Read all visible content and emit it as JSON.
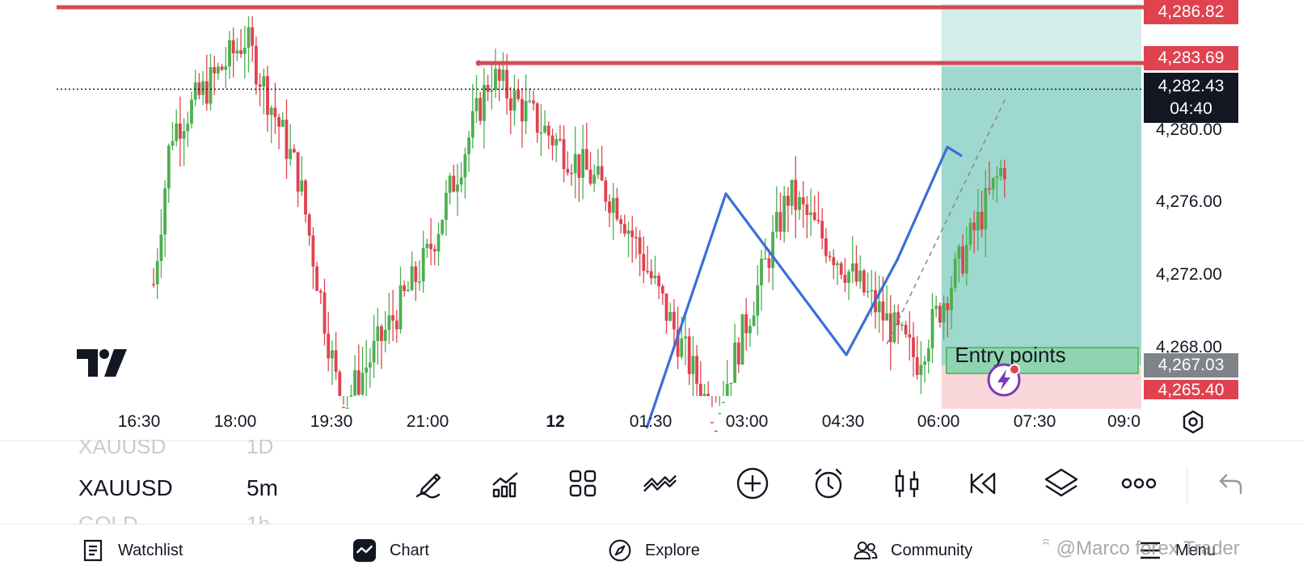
{
  "symbol": {
    "ghost_above": "XAUUSD",
    "ghost_above_tf": "1D",
    "name": "XAUUSD",
    "timeframe": "5m",
    "ghost_below": "GOLD",
    "ghost_below_tf": "1h"
  },
  "price_tags": {
    "top_line": "4,286.82",
    "second_line": "4,283.69",
    "current": "4,282.43",
    "countdown": "04:40",
    "entry": "4,267.03",
    "stop": "4,265.40"
  },
  "price_axis": [
    "4,280.00",
    "4,276.00",
    "4,272.00",
    "4,268.00"
  ],
  "time_axis": [
    {
      "label": "16:30",
      "bold": false
    },
    {
      "label": "18:00",
      "bold": false
    },
    {
      "label": "19:30",
      "bold": false
    },
    {
      "label": "21:00",
      "bold": false
    },
    {
      "label": "12",
      "bold": true
    },
    {
      "label": "01:30",
      "bold": false
    },
    {
      "label": "03:00",
      "bold": false
    },
    {
      "label": "04:30",
      "bold": false
    },
    {
      "label": "06:00",
      "bold": false
    },
    {
      "label": "07:30",
      "bold": false
    },
    {
      "label": "09:0",
      "bold": false
    }
  ],
  "annotations": {
    "entry_box": "Entry points"
  },
  "toolbar": [
    "pencil-icon",
    "indicators-icon",
    "templates-icon",
    "compare-icon",
    "add-icon",
    "alert-clock-icon",
    "candles-icon",
    "replay-icon",
    "layers-icon",
    "more-icon",
    "undo-icon"
  ],
  "nav": {
    "watchlist": "Watchlist",
    "chart": "Chart",
    "explore": "Explore",
    "community": "Community",
    "menu": "Menu"
  },
  "watermark": "@Marco forex Trader",
  "colors": {
    "bull": "#4caf50",
    "bear": "#e0424f",
    "resistance": "#d64a55",
    "profit_zone": "#9fd8cf",
    "profit_zone_light": "#d3ede8",
    "stop_zone": "#f9d6da",
    "entry_box": "#8fd4b0",
    "trend": "#3a6fd8",
    "price_tag_red": "#e0424f",
    "price_tag_black": "#131722",
    "price_tag_grey": "#808488"
  },
  "chart_data": {
    "type": "candlestick",
    "symbol": "XAUUSD",
    "interval": "5m",
    "ylim": [
      4264.0,
      4288.0
    ],
    "resistance_lines": [
      4286.82,
      4283.69
    ],
    "current_price": 4282.43,
    "entry_price": 4267.03,
    "stop_price": 4265.4,
    "trend_path_prices": [
      4263.5,
      4276.6,
      4267.6,
      4272.9,
      4279.2,
      4278.7
    ],
    "key_points": [
      {
        "time": "16:30",
        "price": 4264.5
      },
      {
        "time": "17:00",
        "price": 4280.0
      },
      {
        "time": "18:10",
        "price": 4285.3
      },
      {
        "time": "19:00",
        "price": 4277.5
      },
      {
        "time": "19:40",
        "price": 4264.5
      },
      {
        "time": "21:00",
        "price": 4273.0
      },
      {
        "time": "22:00",
        "price": 4283.2
      },
      {
        "time": "00:00",
        "price": 4276.0
      },
      {
        "time": "01:30",
        "price": 4264.0
      },
      {
        "time": "02:40",
        "price": 4276.6
      },
      {
        "time": "04:40",
        "price": 4267.3
      },
      {
        "time": "06:00",
        "price": 4278.0
      },
      {
        "time": "07:00",
        "price": 4282.4
      }
    ]
  }
}
